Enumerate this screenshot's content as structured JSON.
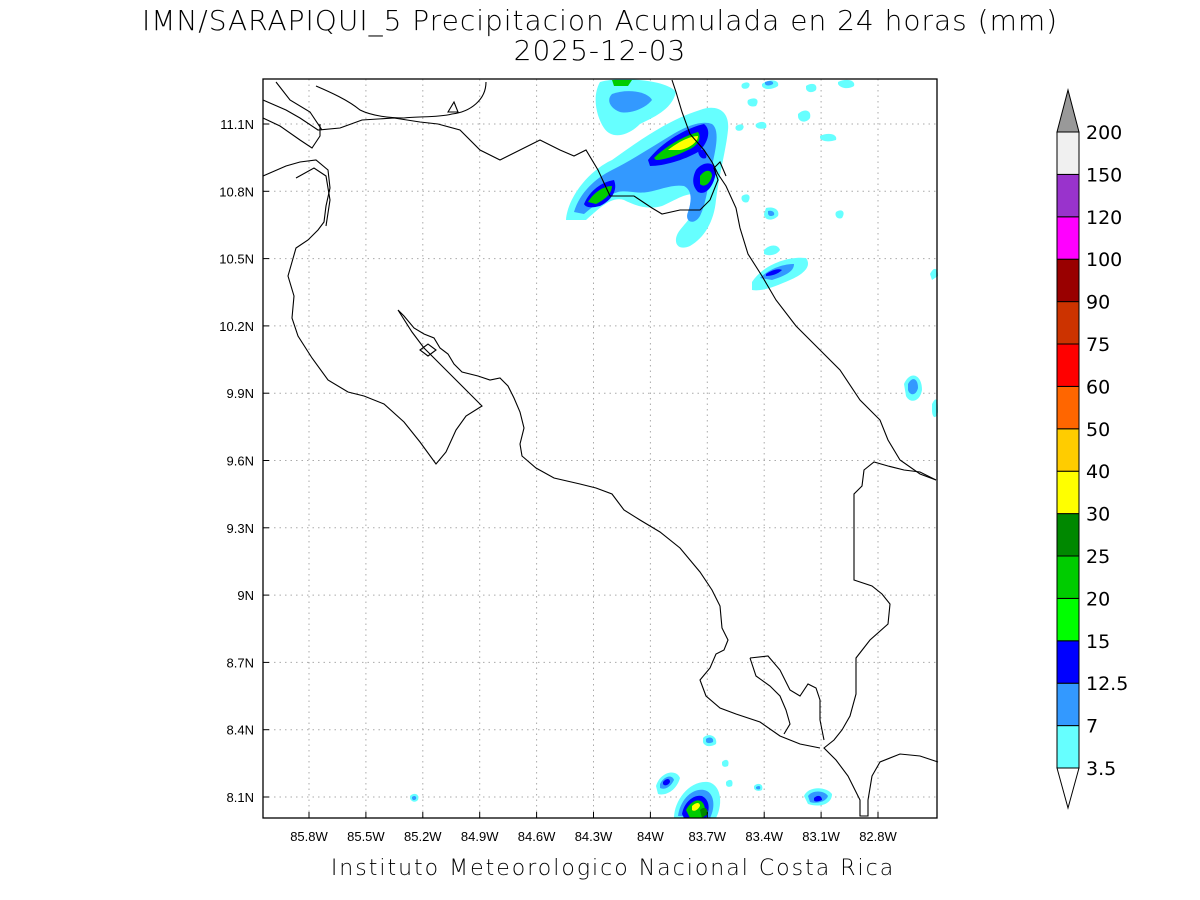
{
  "title": {
    "line1": "IMN/SARAPIQUI_5 Precipitacion Acumulada en 24 horas (mm)",
    "line2": "2025-12-03"
  },
  "credit": "Instituto Meteorologico Nacional Costa Rica",
  "map": {
    "lon_ticks": [
      "85.8W",
      "85.5W",
      "85.2W",
      "84.9W",
      "84.6W",
      "84.3W",
      "84W",
      "83.7W",
      "83.4W",
      "83.1W",
      "82.8W"
    ],
    "lat_ticks": [
      "11.1N",
      "10.8N",
      "10.5N",
      "10.2N",
      "9.9N",
      "9.6N",
      "9.3N",
      "9N",
      "8.7N",
      "8.4N",
      "8.1N"
    ],
    "grid": true,
    "projection": "lat-lon"
  },
  "colorbar": {
    "labels": [
      "3.5",
      "7",
      "12.5",
      "15",
      "20",
      "25",
      "30",
      "40",
      "50",
      "60",
      "75",
      "90",
      "100",
      "120",
      "150",
      "200"
    ],
    "colors": [
      "#ffffff",
      "#66ffff",
      "#3399ff",
      "#0000ff",
      "#00ff00",
      "#00cc00",
      "#008800",
      "#ffff00",
      "#ffcc00",
      "#ff6600",
      "#ff0000",
      "#cc3300",
      "#990000",
      "#ff00ff",
      "#9933cc",
      "#f0f0f0",
      "#999999"
    ]
  }
}
